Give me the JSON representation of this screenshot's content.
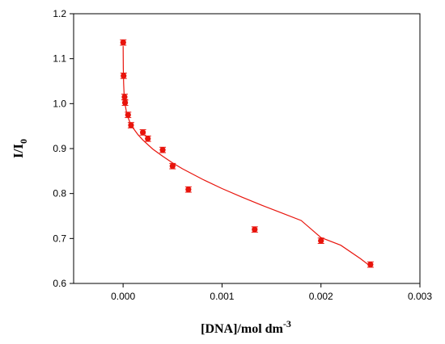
{
  "chart_data": {
    "type": "scatter",
    "title": "",
    "xlabel": {
      "main": "[DNA]/mol dm",
      "sup": "-3"
    },
    "ylabel": {
      "main": "I/I",
      "sub": "0"
    },
    "xlim": [
      -0.0005,
      0.003
    ],
    "ylim": [
      0.6,
      1.2
    ],
    "xticks": [
      "0.000",
      "0.001",
      "0.002",
      "0.003"
    ],
    "xtick_values": [
      0,
      0.001,
      0.002,
      0.003
    ],
    "yticks": [
      "0.6",
      "0.7",
      "0.8",
      "0.9",
      "1.0",
      "1.1",
      "1.2"
    ],
    "ytick_values": [
      0.6,
      0.7,
      0.8,
      0.9,
      1.0,
      1.1,
      1.2
    ],
    "grid": false,
    "legend": "none",
    "color": "#e8140c",
    "series": [
      {
        "points": [
          {
            "x": 1e-06,
            "y": 1.136
          },
          {
            "x": 5e-06,
            "y": 1.062
          },
          {
            "x": 1.5e-05,
            "y": 1.015
          },
          {
            "x": 2e-05,
            "y": 1.002
          },
          {
            "x": 5e-05,
            "y": 0.975
          },
          {
            "x": 8e-05,
            "y": 0.952
          },
          {
            "x": 0.0002,
            "y": 0.936
          },
          {
            "x": 0.00025,
            "y": 0.922
          },
          {
            "x": 0.0004,
            "y": 0.897
          },
          {
            "x": 0.0005,
            "y": 0.861
          },
          {
            "x": 0.00066,
            "y": 0.809
          },
          {
            "x": 0.00133,
            "y": 0.72
          },
          {
            "x": 0.002,
            "y": 0.695
          },
          {
            "x": 0.0025,
            "y": 0.642
          }
        ],
        "error": 0.006
      }
    ],
    "fit_curve": {
      "x": [
        5e-07,
        2e-06,
        5e-06,
        1e-05,
        2e-05,
        4e-05,
        7e-05,
        0.0001,
        0.00015,
        0.0002,
        0.0003,
        0.0004,
        0.0005,
        0.0006,
        0.0008,
        0.001,
        0.0012,
        0.0014,
        0.0016,
        0.0018,
        0.002,
        0.0022,
        0.0024,
        0.0025
      ],
      "y": [
        1.128,
        1.078,
        1.045,
        1.02,
        0.998,
        0.975,
        0.958,
        0.946,
        0.931,
        0.919,
        0.899,
        0.883,
        0.868,
        0.855,
        0.832,
        0.811,
        0.792,
        0.774,
        0.757,
        0.74,
        0.702,
        0.685,
        0.655,
        0.638
      ]
    }
  }
}
